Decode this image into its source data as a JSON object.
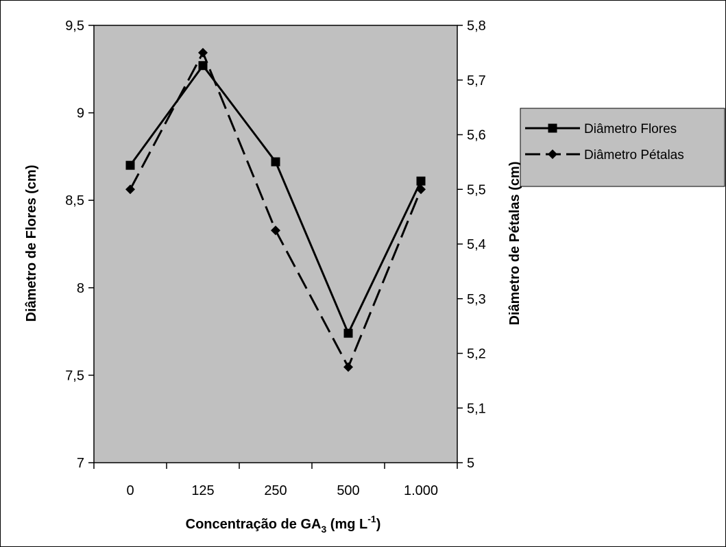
{
  "chart_data": {
    "type": "line",
    "categories": [
      "0",
      "125",
      "250",
      "500",
      "1.000"
    ],
    "xlabel": "Concentração de GA",
    "xlabel_sub": "3",
    "xlabel_unit": " (mg L",
    "xlabel_sup": "-1",
    "xlabel_close": ")",
    "ylabel_left": "Diâmetro de Flores (cm)",
    "ylabel_right": "Diâmetro de Pétalas (cm)",
    "ylim_left": [
      7,
      9.5
    ],
    "ylim_right": [
      5,
      5.8
    ],
    "yticks_left": [
      "7",
      "7,5",
      "8",
      "8,5",
      "9",
      "9,5"
    ],
    "yticks_right": [
      "5",
      "5,1",
      "5,2",
      "5,3",
      "5,4",
      "5,5",
      "5,6",
      "5,7",
      "5,8"
    ],
    "grid": false,
    "legend_position": "right",
    "plot_background": "#c0c0c0",
    "series": [
      {
        "name": "Diâmetro Flores",
        "axis": "left",
        "marker": "square",
        "dash": "solid",
        "color": "#000000",
        "values": [
          8.7,
          9.27,
          8.72,
          7.74,
          8.61
        ]
      },
      {
        "name": "Diâmetro Pétalas",
        "axis": "right",
        "marker": "diamond",
        "dash": "dashed",
        "color": "#000000",
        "values": [
          5.5,
          5.75,
          5.425,
          5.175,
          5.5
        ]
      }
    ]
  }
}
